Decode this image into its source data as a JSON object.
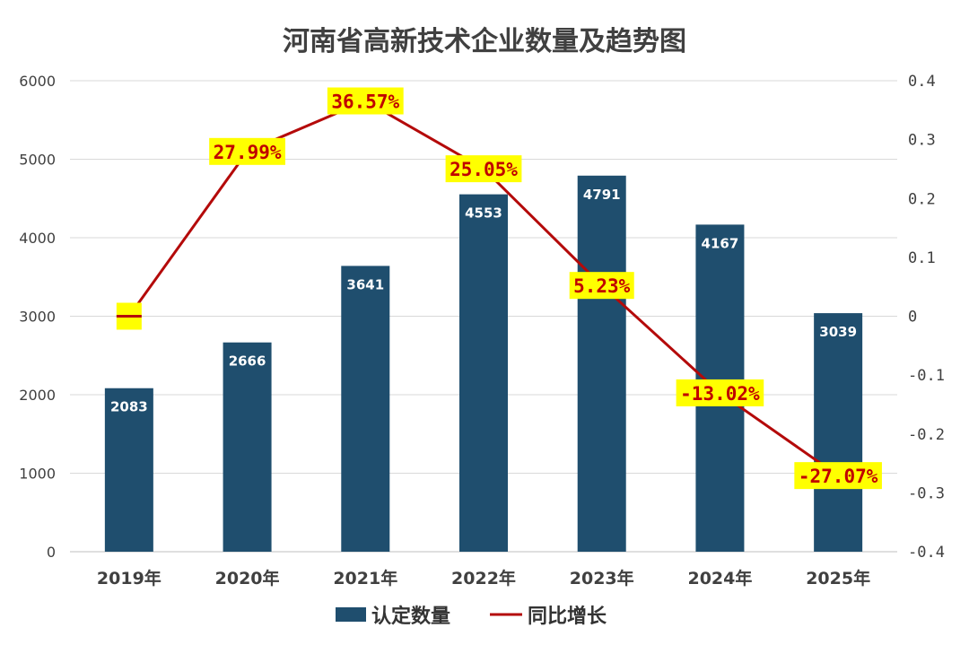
{
  "chart_data": {
    "type": "bar",
    "title": "河南省高新技术企业数量及趋势图",
    "categories": [
      "2019年",
      "2020年",
      "2021年",
      "2022年",
      "2023年",
      "2024年",
      "2025年"
    ],
    "series": [
      {
        "name": "认定数量",
        "type": "bar",
        "axis": "left",
        "color": "#1f4e6e",
        "values": [
          2083,
          2666,
          3641,
          4553,
          4791,
          4167,
          3039
        ],
        "labels": [
          "2083",
          "2666",
          "3641",
          "4553",
          "4791",
          "4167",
          "3039"
        ]
      },
      {
        "name": "同比增长",
        "type": "line",
        "axis": "right",
        "color": "#b40a0a",
        "values": [
          0,
          0.2799,
          0.3657,
          0.2505,
          0.0523,
          -0.1302,
          -0.2707
        ],
        "labels": [
          "",
          "27.99%",
          "36.57%",
          "25.05%",
          "5.23%",
          "-13.02%",
          "-27.07%"
        ]
      }
    ],
    "y_left": {
      "range": [
        0,
        6000
      ],
      "ticks": [
        "0",
        "1000",
        "2000",
        "3000",
        "4000",
        "5000",
        "6000"
      ]
    },
    "y_right": {
      "range": [
        -0.4,
        0.4
      ],
      "ticks": [
        "-0.4",
        "-0.3",
        "-0.2",
        "-0.1",
        "0",
        "0.1",
        "0.2",
        "0.3",
        "0.4"
      ]
    },
    "grid": true,
    "legend": "bottom",
    "label_highlight_color": "#ffff00"
  }
}
